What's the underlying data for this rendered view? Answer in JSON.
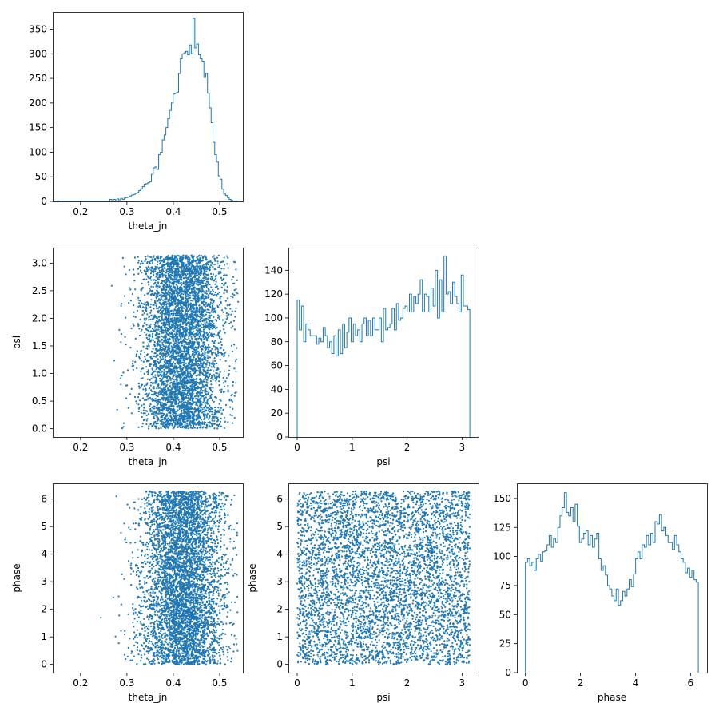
{
  "figure": {
    "type": "corner-plot"
  },
  "chart_data": [
    {
      "id": "hist-theta_jn",
      "type": "histogram",
      "row": 0,
      "col": 0,
      "xlabel": "theta_jn",
      "ylabel": "",
      "xlim": [
        0.14,
        0.55
      ],
      "ylim": [
        0,
        385
      ],
      "xticks": [
        "0.2",
        "0.3",
        "0.4",
        "0.5"
      ],
      "xtick_values": [
        0.2,
        0.3,
        0.4,
        0.5
      ],
      "yticks": [
        "0",
        "50",
        "100",
        "150",
        "200",
        "250",
        "300",
        "350"
      ],
      "ytick_values": [
        0,
        50,
        100,
        150,
        200,
        250,
        300,
        350
      ],
      "bin_range": [
        0.15,
        0.54
      ],
      "counts": [
        1,
        0,
        0,
        0,
        0,
        0,
        0,
        0,
        0,
        0,
        0,
        0,
        0,
        0,
        0,
        0,
        0,
        0,
        0,
        0,
        0,
        0,
        0,
        0,
        0,
        0,
        0,
        0,
        0,
        4,
        3,
        4,
        3,
        5,
        3,
        6,
        4,
        7,
        8,
        9,
        11,
        13,
        14,
        16,
        18,
        22,
        25,
        30,
        35,
        36,
        38,
        40,
        55,
        68,
        70,
        65,
        95,
        100,
        125,
        135,
        150,
        168,
        185,
        200,
        218,
        220,
        222,
        260,
        290,
        300,
        302,
        305,
        298,
        318,
        300,
        372,
        312,
        320,
        298,
        290,
        285,
        252,
        260,
        220,
        190,
        160,
        120,
        95,
        80,
        52,
        45,
        25,
        15,
        12,
        8,
        4,
        2,
        0,
        0,
        0
      ]
    },
    {
      "id": "scatter-psi-theta_jn",
      "type": "scatter",
      "row": 1,
      "col": 0,
      "xlabel": "theta_jn",
      "ylabel": "psi",
      "xlim": [
        0.14,
        0.55
      ],
      "ylim": [
        -0.15,
        3.28
      ],
      "xticks": [
        "0.2",
        "0.3",
        "0.4",
        "0.5"
      ],
      "xtick_values": [
        0.2,
        0.3,
        0.4,
        0.5
      ],
      "yticks": [
        "0.0",
        "0.5",
        "1.0",
        "1.5",
        "2.0",
        "2.5",
        "3.0"
      ],
      "ytick_values": [
        0.0,
        0.5,
        1.0,
        1.5,
        2.0,
        2.5,
        3.0
      ],
      "x_distribution": {
        "mean": 0.42,
        "sd": 0.045,
        "min": 0.15,
        "max": 0.54
      },
      "y_range": [
        0,
        3.14159
      ],
      "n_points": 5000
    },
    {
      "id": "hist-psi",
      "type": "histogram",
      "row": 1,
      "col": 1,
      "xlabel": "psi",
      "ylabel": "",
      "xlim": [
        -0.16,
        3.3
      ],
      "ylim": [
        0,
        159
      ],
      "xticks": [
        "0",
        "1",
        "2",
        "3"
      ],
      "xtick_values": [
        0,
        1,
        2,
        3
      ],
      "yticks": [
        "0",
        "20",
        "40",
        "60",
        "80",
        "100",
        "120",
        "140"
      ],
      "ytick_values": [
        0,
        20,
        40,
        60,
        80,
        100,
        120,
        140
      ],
      "bin_range": [
        0,
        3.14159
      ],
      "counts": [
        115,
        90,
        110,
        80,
        95,
        90,
        85,
        85,
        85,
        78,
        83,
        80,
        92,
        85,
        75,
        80,
        70,
        85,
        68,
        90,
        70,
        95,
        75,
        88,
        100,
        80,
        95,
        85,
        90,
        80,
        95,
        100,
        85,
        98,
        85,
        100,
        90,
        90,
        100,
        80,
        108,
        90,
        92,
        95,
        108,
        90,
        112,
        98,
        100,
        108,
        110,
        105,
        120,
        105,
        118,
        112,
        120,
        132,
        105,
        120,
        118,
        105,
        125,
        110,
        140,
        100,
        132,
        105,
        152,
        120,
        122,
        112,
        130,
        118,
        112,
        105,
        136,
        110,
        110,
        107
      ]
    },
    {
      "id": "scatter-phase-theta_jn",
      "type": "scatter",
      "row": 2,
      "col": 0,
      "xlabel": "theta_jn",
      "ylabel": "phase",
      "xlim": [
        0.14,
        0.55
      ],
      "ylim": [
        -0.3,
        6.57
      ],
      "xticks": [
        "0.2",
        "0.3",
        "0.4",
        "0.5"
      ],
      "xtick_values": [
        0.2,
        0.3,
        0.4,
        0.5
      ],
      "yticks": [
        "0",
        "1",
        "2",
        "3",
        "4",
        "5",
        "6"
      ],
      "ytick_values": [
        0,
        1,
        2,
        3,
        4,
        5,
        6
      ],
      "x_distribution": {
        "mean": 0.42,
        "sd": 0.045,
        "min": 0.15,
        "max": 0.54
      },
      "y_range": [
        0,
        6.28318
      ],
      "n_points": 5000
    },
    {
      "id": "scatter-phase-psi",
      "type": "scatter",
      "row": 2,
      "col": 1,
      "xlabel": "psi",
      "ylabel": "phase",
      "xlim": [
        -0.16,
        3.3
      ],
      "ylim": [
        -0.3,
        6.57
      ],
      "xticks": [
        "0",
        "1",
        "2",
        "3"
      ],
      "xtick_values": [
        0,
        1,
        2,
        3
      ],
      "yticks": [
        "0",
        "1",
        "2",
        "3",
        "4",
        "5",
        "6"
      ],
      "ytick_values": [
        0,
        1,
        2,
        3,
        4,
        5,
        6
      ],
      "x_range": [
        0,
        3.14159
      ],
      "y_range": [
        0,
        6.28318
      ],
      "n_points": 5000
    },
    {
      "id": "hist-phase",
      "type": "histogram",
      "row": 2,
      "col": 2,
      "xlabel": "phase",
      "ylabel": "",
      "xlim": [
        -0.31,
        6.6
      ],
      "ylim": [
        0,
        163
      ],
      "xticks": [
        "0",
        "2",
        "4",
        "6"
      ],
      "xtick_values": [
        0,
        2,
        4,
        6
      ],
      "yticks": [
        "0",
        "25",
        "50",
        "75",
        "100",
        "125",
        "150"
      ],
      "ytick_values": [
        0,
        25,
        50,
        75,
        100,
        125,
        150
      ],
      "bin_range": [
        0,
        6.28318
      ],
      "counts": [
        95,
        98,
        92,
        95,
        88,
        98,
        102,
        96,
        104,
        105,
        110,
        118,
        108,
        115,
        112,
        125,
        135,
        142,
        155,
        138,
        135,
        142,
        130,
        145,
        126,
        112,
        115,
        120,
        122,
        110,
        118,
        108,
        115,
        120,
        98,
        88,
        92,
        84,
        75,
        72,
        66,
        62,
        72,
        58,
        62,
        70,
        66,
        72,
        80,
        74,
        85,
        98,
        104,
        98,
        110,
        108,
        118,
        110,
        120,
        112,
        130,
        128,
        136,
        122,
        125,
        118,
        112,
        112,
        106,
        118,
        110,
        104,
        98,
        95,
        86,
        90,
        82,
        88,
        80,
        78
      ]
    }
  ]
}
